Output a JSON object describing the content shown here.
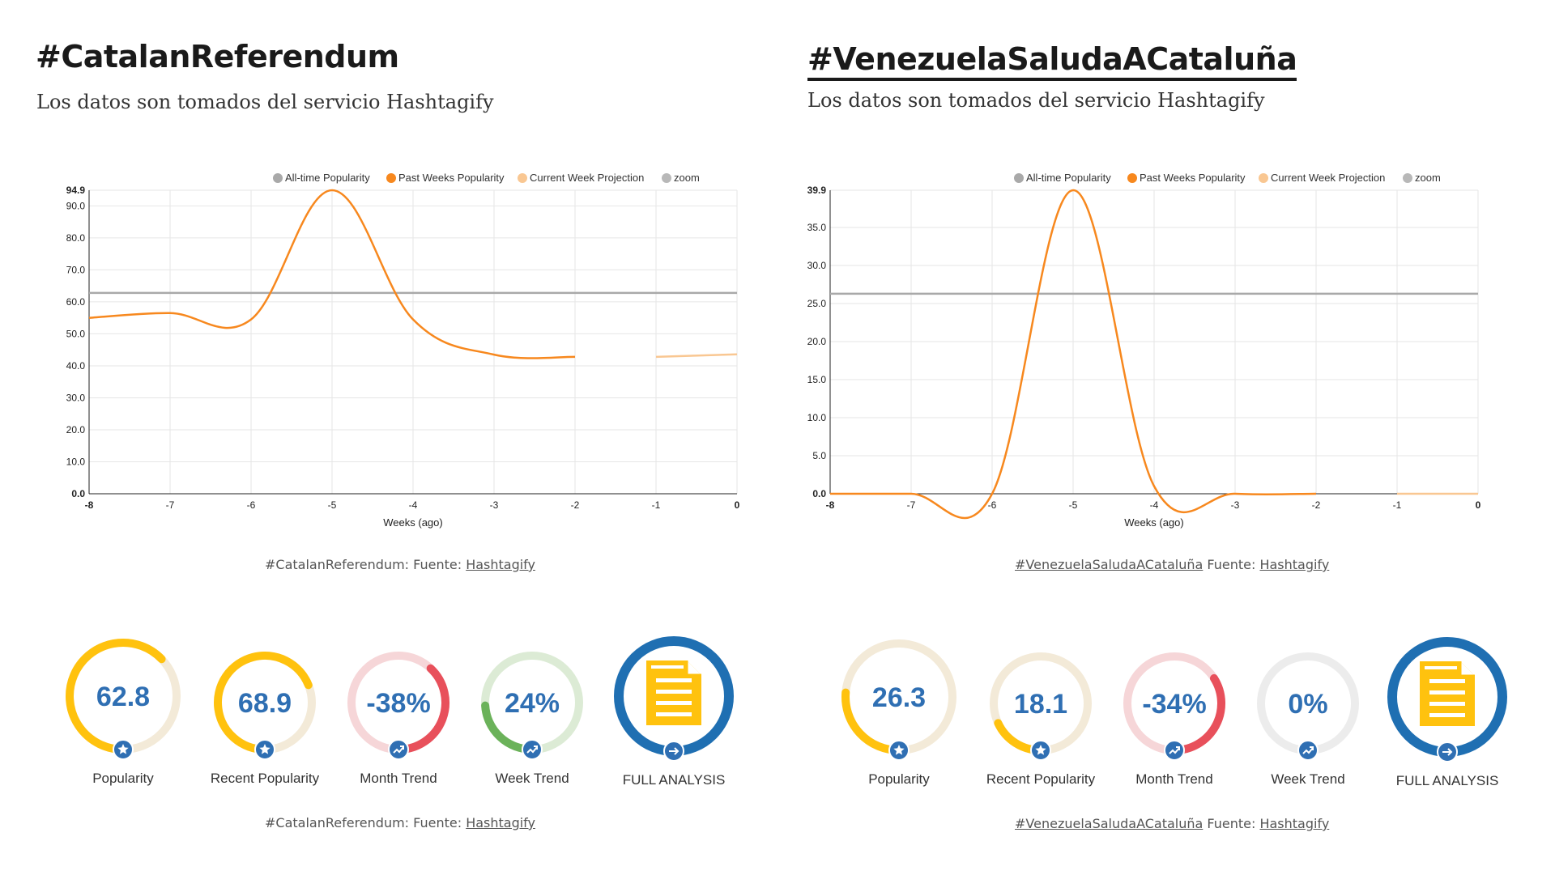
{
  "colors": {
    "orange": "#f7881e",
    "orange_light": "#f9c792",
    "grey_line": "#a9a9a9",
    "blue": "#2f6fb3",
    "gauge_yellow": "#ffc20e",
    "gauge_yellow_track": "#f3ead8",
    "gauge_red": "#e8505b",
    "gauge_red_track": "#f6d6d8",
    "gauge_green": "#6bb25a",
    "gauge_green_track": "#dcebd5",
    "gauge_grey_track": "#ececec",
    "full_analysis_ring": "#1f6fb2",
    "doc_yellow": "#ffc20e"
  },
  "left": {
    "title": "#CatalanReferendum",
    "subtitle": "Los datos son tomados del servicio Hashtagify",
    "chart_source": {
      "prefix": "#CatalanReferendum: Fuente: ",
      "link": "Hashtagify"
    },
    "metrics_source": {
      "prefix": "#CatalanReferendum: Fuente: ",
      "link": "Hashtagify"
    },
    "metrics": [
      {
        "value": "62.8",
        "label": "Popularity",
        "icon": "star-icon",
        "style": "yellow",
        "fraction": 0.628
      },
      {
        "value": "68.9",
        "label": "Recent Popularity",
        "icon": "star-icon",
        "style": "yellow",
        "fraction": 0.689
      },
      {
        "value": "-38%",
        "label": "Month Trend",
        "icon": "trend-icon",
        "style": "red",
        "fraction": 0.38
      },
      {
        "value": "24%",
        "label": "Week Trend",
        "icon": "trend-icon",
        "style": "green",
        "fraction": 0.24
      },
      {
        "value": "",
        "label": "FULL ANALYSIS",
        "icon": "arrow-right-icon",
        "style": "full",
        "fraction": 1
      }
    ]
  },
  "right": {
    "title": "#VenezuelaSaludaACataluña",
    "subtitle": "Los datos son tomados del servicio Hashtagify",
    "chart_source": {
      "prefix_link": "#VenezuelaSaludaACataluña",
      "middle": " Fuente: ",
      "link": "Hashtagify"
    },
    "metrics_source": {
      "prefix_link": "#VenezuelaSaludaACataluña",
      "middle": " Fuente: ",
      "link": "Hashtagify"
    },
    "metrics": [
      {
        "value": "26.3",
        "label": "Popularity",
        "icon": "star-icon",
        "style": "yellow",
        "fraction": 0.263
      },
      {
        "value": "18.1",
        "label": "Recent Popularity",
        "icon": "star-icon",
        "style": "yellow",
        "fraction": 0.181
      },
      {
        "value": "-34%",
        "label": "Month Trend",
        "icon": "trend-icon",
        "style": "red",
        "fraction": 0.34
      },
      {
        "value": "0%",
        "label": "Week Trend",
        "icon": "trend-icon",
        "style": "grey",
        "fraction": 0
      },
      {
        "value": "",
        "label": "FULL ANALYSIS",
        "icon": "arrow-right-icon",
        "style": "full",
        "fraction": 1
      }
    ]
  },
  "chart_data": [
    {
      "type": "line",
      "legend": [
        "All-time Popularity",
        "Past Weeks Popularity",
        "Current Week Projection",
        "zoom"
      ],
      "legend_placement": "top-right",
      "xlabel": "Weeks (ago)",
      "ylabel": "",
      "x_ticks": [
        "-8",
        "-7",
        "-6",
        "-5",
        "-4",
        "-3",
        "-2",
        "-1",
        "0"
      ],
      "y_ticks": [
        "0.0",
        "10.0",
        "20.0",
        "30.0",
        "40.0",
        "50.0",
        "60.0",
        "70.0",
        "80.0",
        "90.0",
        "94.9"
      ],
      "ylim": [
        0,
        94.9
      ],
      "xlim": [
        -8,
        0
      ],
      "grid": true,
      "series": [
        {
          "name": "All-time Popularity",
          "x": [
            -8,
            0
          ],
          "values": [
            62.8,
            62.8
          ]
        },
        {
          "name": "Past Weeks Popularity",
          "x": [
            -8,
            -7,
            -6,
            -5,
            -4,
            -3,
            -2
          ],
          "values": [
            55,
            56.5,
            54.5,
            94.9,
            54.5,
            43.5,
            42.8
          ]
        },
        {
          "name": "Current Week Projection",
          "x": [
            -1,
            0
          ],
          "values": [
            42.8,
            43.6
          ]
        }
      ]
    },
    {
      "type": "line",
      "legend": [
        "All-time Popularity",
        "Past Weeks Popularity",
        "Current Week Projection",
        "zoom"
      ],
      "legend_placement": "top-right",
      "xlabel": "Weeks (ago)",
      "ylabel": "",
      "x_ticks": [
        "-8",
        "-7",
        "-6",
        "-5",
        "-4",
        "-3",
        "-2",
        "-1",
        "0"
      ],
      "y_ticks": [
        "0.0",
        "5.0",
        "10.0",
        "15.0",
        "20.0",
        "25.0",
        "30.0",
        "35.0",
        "39.9"
      ],
      "ylim": [
        0,
        39.9
      ],
      "xlim": [
        -8,
        0
      ],
      "grid": true,
      "series": [
        {
          "name": "All-time Popularity",
          "x": [
            -8,
            0
          ],
          "values": [
            26.3,
            26.3
          ]
        },
        {
          "name": "Past Weeks Popularity",
          "x": [
            -8,
            -7,
            -6,
            -5,
            -4,
            -3,
            -2
          ],
          "values": [
            0,
            0,
            0,
            39.9,
            1,
            0,
            0
          ]
        },
        {
          "name": "Current Week Projection",
          "x": [
            -1,
            0
          ],
          "values": [
            0,
            0
          ]
        }
      ]
    }
  ]
}
